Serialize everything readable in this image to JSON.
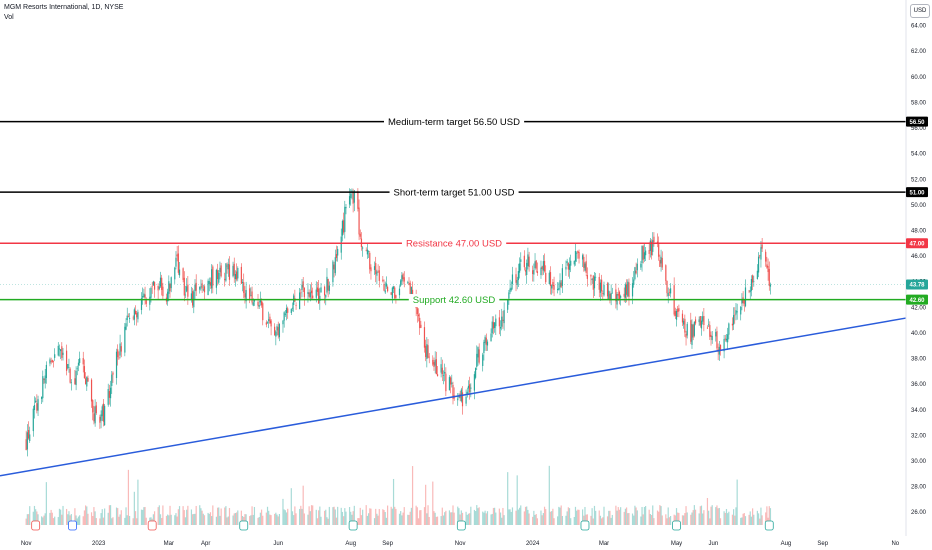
{
  "legend": {
    "title": "MGM Resorts International, 1D, NYSE",
    "volume_label": "Vol"
  },
  "currency": "USD",
  "colors": {
    "up": "#26a69a",
    "down": "#ef5350",
    "trendline": "#2a5cdb",
    "target": "#000000",
    "resistance": "#f23645",
    "support": "#22ab22"
  },
  "chart_data": {
    "type": "candlestick",
    "price_axis": {
      "min": 25,
      "max": 66,
      "ticks": [
        26,
        28,
        30,
        32,
        34,
        36,
        38,
        40,
        42,
        44,
        46,
        48,
        50,
        52,
        54,
        56,
        58,
        60,
        62,
        64
      ]
    },
    "time_axis": {
      "labels": [
        "Nov",
        "2023",
        "Mar",
        "Apr",
        "Jun",
        "Aug",
        "Sep",
        "Nov",
        "2024",
        "Mar",
        "May",
        "Jun",
        "Aug",
        "Sep",
        "No"
      ]
    },
    "horizontal_lines": [
      {
        "label": "Medium-term target 56.50 USD",
        "price": 56.5,
        "tag": "56.50",
        "color": "#000000"
      },
      {
        "label": "Short-term target 51.00 USD",
        "price": 51.0,
        "tag": "51.00",
        "color": "#000000"
      },
      {
        "label": "Resistance 47.00 USD",
        "price": 47.0,
        "tag": "47.00",
        "color": "#f23645"
      },
      {
        "label": "Support 42.60 USD",
        "price": 42.6,
        "tag": "42.60",
        "color": "#22ab22"
      }
    ],
    "last_price": {
      "price": 43.78,
      "tag": "43.78"
    },
    "trendline": {
      "start": {
        "date": "2022-11-01",
        "price": 29.2
      },
      "end": {
        "date": "2024-10-31",
        "price": 41.0
      }
    },
    "close_series": {
      "start": "2022-11-01",
      "end": "2024-07-19",
      "points": [
        [
          "2022-11-01",
          31.5
        ],
        [
          "2022-11-20",
          37.5
        ],
        [
          "2022-12-01",
          38.5
        ],
        [
          "2022-12-10",
          36.2
        ],
        [
          "2022-12-18",
          37.8
        ],
        [
          "2022-12-28",
          33.5
        ],
        [
          "2023-01-05",
          33.8
        ],
        [
          "2023-01-15",
          37.5
        ],
        [
          "2023-01-25",
          41.0
        ],
        [
          "2023-02-10",
          42.5
        ],
        [
          "2023-02-15",
          44.3
        ],
        [
          "2023-02-28",
          43.0
        ],
        [
          "2023-03-08",
          45.5
        ],
        [
          "2023-03-18",
          42.5
        ],
        [
          "2023-03-30",
          43.8
        ],
        [
          "2023-04-10",
          44.5
        ],
        [
          "2023-04-20",
          45.0
        ],
        [
          "2023-04-28",
          44.5
        ],
        [
          "2023-05-05",
          43.0
        ],
        [
          "2023-05-18",
          42.0
        ],
        [
          "2023-05-30",
          39.5
        ],
        [
          "2023-06-10",
          42.2
        ],
        [
          "2023-06-25",
          43.5
        ],
        [
          "2023-07-05",
          42.5
        ],
        [
          "2023-07-18",
          45.0
        ],
        [
          "2023-07-28",
          49.5
        ],
        [
          "2023-08-05",
          51.2
        ],
        [
          "2023-08-10",
          46.0
        ],
        [
          "2023-08-20",
          45.5
        ],
        [
          "2023-09-01",
          43.0
        ],
        [
          "2023-09-15",
          44.0
        ],
        [
          "2023-09-25",
          42.5
        ],
        [
          "2023-10-05",
          38.0
        ],
        [
          "2023-10-15",
          37.0
        ],
        [
          "2023-10-25",
          35.5
        ],
        [
          "2023-11-05",
          34.8
        ],
        [
          "2023-11-15",
          38.0
        ],
        [
          "2023-11-25",
          40.0
        ],
        [
          "2023-12-05",
          41.0
        ],
        [
          "2023-12-15",
          44.5
        ],
        [
          "2023-12-29",
          45.5
        ],
        [
          "2024-01-10",
          45.0
        ],
        [
          "2024-01-20",
          43.5
        ],
        [
          "2024-02-01",
          45.5
        ],
        [
          "2024-02-10",
          46.5
        ],
        [
          "2024-02-20",
          44.0
        ],
        [
          "2024-03-05",
          43.0
        ],
        [
          "2024-03-15",
          42.5
        ],
        [
          "2024-03-25",
          44.0
        ],
        [
          "2024-04-05",
          47.0
        ],
        [
          "2024-04-15",
          46.5
        ],
        [
          "2024-04-25",
          43.0
        ],
        [
          "2024-05-05",
          40.5
        ],
        [
          "2024-05-15",
          40.0
        ],
        [
          "2024-05-25",
          41.0
        ],
        [
          "2024-06-05",
          39.0
        ],
        [
          "2024-06-15",
          40.5
        ],
        [
          "2024-06-25",
          42.5
        ],
        [
          "2024-07-05",
          44.0
        ],
        [
          "2024-07-12",
          46.8
        ],
        [
          "2024-07-19",
          43.78
        ]
      ]
    }
  }
}
